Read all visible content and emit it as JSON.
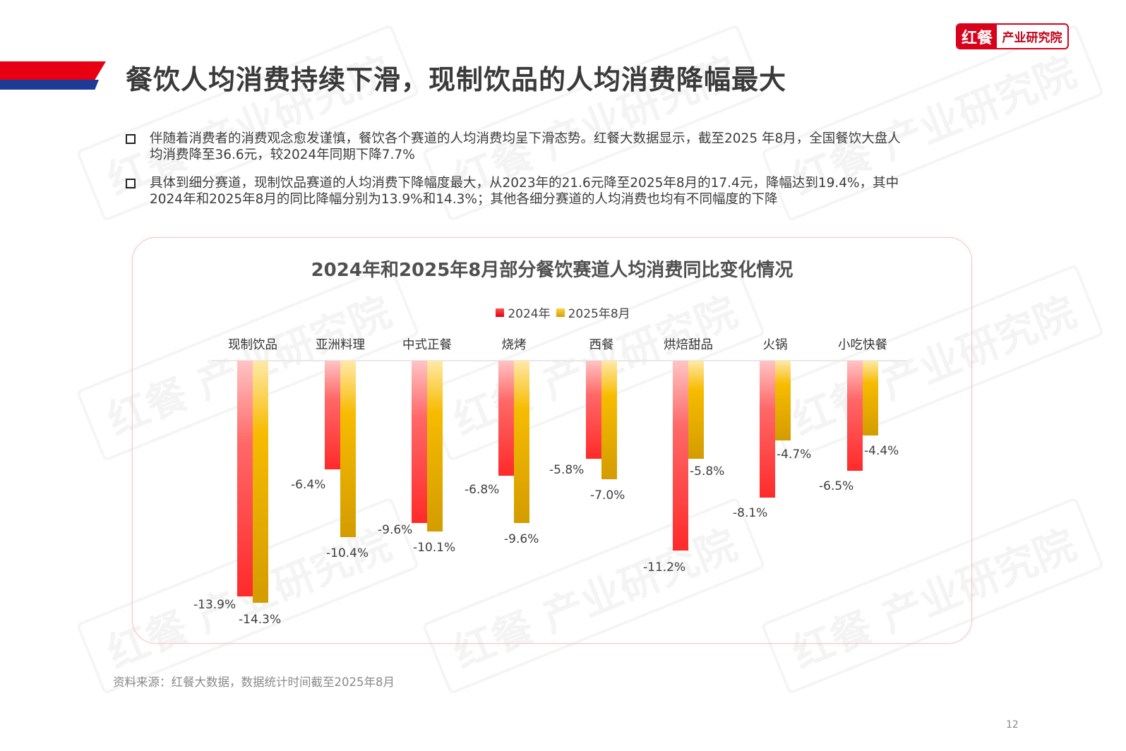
{
  "header": {
    "title": "餐饮人均消费持续下滑，现制饮品的人均消费降幅最大",
    "logo": {
      "left": "红餐",
      "right": "产业研究院"
    }
  },
  "bullets": [
    {
      "line1": "伴随着消费者的消费观念愈发谨慎，餐饮各个赛道的人均消费均呈下滑态势。红餐大数据显示，截至2025 年8月，全国餐饮大盘人",
      "line2": "均消费降至36.6元，较2024年同期下降7.7%"
    },
    {
      "line1": "具体到细分赛道，现制饮品赛道的人均消费下降幅度最大，从2023年的21.6元降至2025年8月的17.4元，降幅达到19.4%，其中",
      "line2": "2024年和2025年8月的同比降幅分别为13.9%和14.3%；其他各细分赛道的人均消费也均有不同幅度的下降"
    }
  ],
  "watermark": "红餐 产业研究院",
  "chart_data": {
    "type": "bar",
    "title": "2024年和2025年8月部分餐饮赛道人均消费同比变化情况",
    "categories": [
      "现制饮品",
      "亚洲料理",
      "中式正餐",
      "烧烤",
      "西餐",
      "烘焙甜品",
      "火锅",
      "小吃快餐"
    ],
    "series": [
      {
        "name": "2024年",
        "color": "#ff2a2a",
        "values": [
          -13.9,
          -6.4,
          -9.6,
          -6.8,
          -5.8,
          -11.2,
          -8.1,
          -6.5
        ],
        "labels": [
          "-13.9%",
          "-6.4%",
          "-9.6%",
          "-6.8%",
          "-5.8%",
          "-11.2%",
          "-8.1%",
          "-6.5%"
        ]
      },
      {
        "name": "2025年8月",
        "color": "#f7bb00",
        "values": [
          -14.3,
          -10.4,
          -10.1,
          -9.6,
          -7.0,
          -5.8,
          -4.7,
          -4.4
        ],
        "labels": [
          "-14.3%",
          "-10.4%",
          "-10.1%",
          "-9.6%",
          "-7.0%",
          "-5.8%",
          "-4.7%",
          "-4.4%"
        ]
      }
    ],
    "legend_position": "top",
    "xlabel": "",
    "ylabel": "",
    "ylim": [
      -15,
      0
    ],
    "grid": false,
    "category_axis_position": "top"
  },
  "footer": {
    "source": "资料来源：红餐大数据，数据统计时间截至2025年8月",
    "page_number": "12"
  }
}
